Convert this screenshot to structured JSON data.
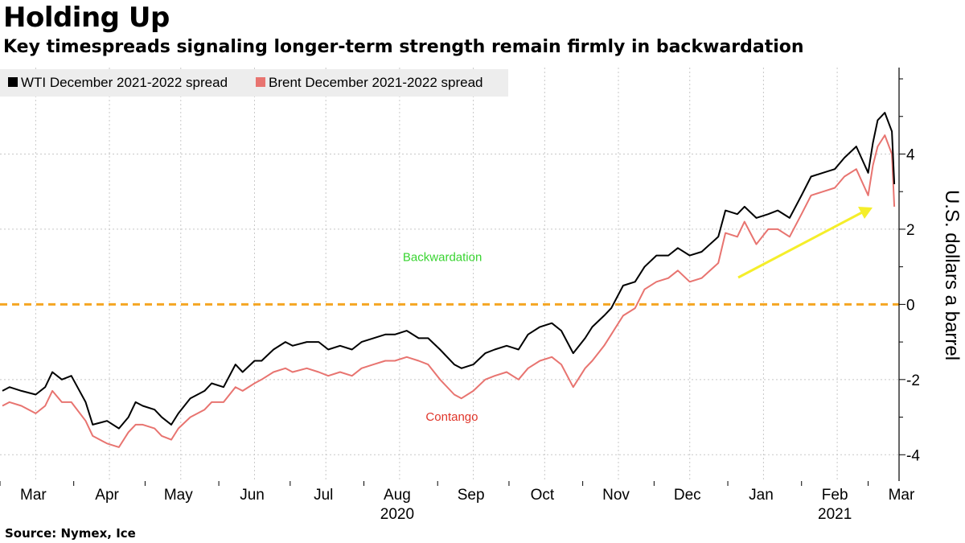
{
  "title": "Holding Up",
  "subtitle": "Key timespreads signaling longer-term strength remain firmly in backwardation",
  "source": "Source: Nymex, Ice",
  "colors": {
    "wti": "#000000",
    "brent": "#e87470",
    "zero_line": "#f5a623",
    "backwardation": "#38d430",
    "contango": "#e0352a",
    "arrow": "#f5ee2a",
    "grid": "#c8c8c8"
  },
  "chart_data": {
    "type": "line",
    "title": "Holding Up",
    "subtitle": "Key timespreads signaling longer-term strength remain firmly in backwardation",
    "ylabel": "U.S. dollars a barrel",
    "xlabel": "",
    "ylim": [
      -4.7,
      6.3
    ],
    "yticks": [
      -4,
      -2,
      0,
      2,
      4
    ],
    "ytick_labels": [
      "-4",
      "-2",
      "0",
      "2",
      "4"
    ],
    "x_range": [
      "2020-03-01",
      "2021-03-14"
    ],
    "month_ticks": [
      {
        "label": "Mar",
        "date": "2020-03-01"
      },
      {
        "label": "Apr",
        "date": "2020-04-01"
      },
      {
        "label": "May",
        "date": "2020-05-01"
      },
      {
        "label": "Jun",
        "date": "2020-06-01"
      },
      {
        "label": "Jul",
        "date": "2020-07-01"
      },
      {
        "label": "Aug",
        "date": "2020-08-01"
      },
      {
        "label": "Sep",
        "date": "2020-09-01"
      },
      {
        "label": "Oct",
        "date": "2020-10-01"
      },
      {
        "label": "Nov",
        "date": "2020-11-01"
      },
      {
        "label": "Dec",
        "date": "2020-12-01"
      },
      {
        "label": "Jan",
        "date": "2021-01-01"
      },
      {
        "label": "Feb",
        "date": "2021-02-01"
      },
      {
        "label": "Mar",
        "date": "2021-03-01"
      }
    ],
    "year_labels": [
      {
        "label": "2020",
        "date": "2020-08-01"
      },
      {
        "label": "2021",
        "date": "2021-02-01"
      }
    ],
    "grid": true,
    "legend_position": "top-left",
    "series": [
      {
        "name": "WTI December 2021-2022 spread",
        "color": "#000000",
        "points": [
          [
            "2020-03-02",
            -2.3
          ],
          [
            "2020-03-05",
            -2.2
          ],
          [
            "2020-03-10",
            -2.3
          ],
          [
            "2020-03-16",
            -2.4
          ],
          [
            "2020-03-20",
            -2.2
          ],
          [
            "2020-03-23",
            -1.8
          ],
          [
            "2020-03-27",
            -2.0
          ],
          [
            "2020-03-31",
            -1.9
          ],
          [
            "2020-04-06",
            -2.6
          ],
          [
            "2020-04-09",
            -3.2
          ],
          [
            "2020-04-15",
            -3.1
          ],
          [
            "2020-04-20",
            -3.3
          ],
          [
            "2020-04-24",
            -3.0
          ],
          [
            "2020-04-27",
            -2.6
          ],
          [
            "2020-04-30",
            -2.7
          ],
          [
            "2020-05-05",
            -2.8
          ],
          [
            "2020-05-08",
            -3.0
          ],
          [
            "2020-05-12",
            -3.2
          ],
          [
            "2020-05-15",
            -2.9
          ],
          [
            "2020-05-20",
            -2.5
          ],
          [
            "2020-05-26",
            -2.3
          ],
          [
            "2020-05-29",
            -2.1
          ],
          [
            "2020-06-03",
            -2.2
          ],
          [
            "2020-06-08",
            -1.6
          ],
          [
            "2020-06-11",
            -1.8
          ],
          [
            "2020-06-16",
            -1.5
          ],
          [
            "2020-06-19",
            -1.5
          ],
          [
            "2020-06-24",
            -1.2
          ],
          [
            "2020-06-29",
            -1.0
          ],
          [
            "2020-07-02",
            -1.1
          ],
          [
            "2020-07-08",
            -1.0
          ],
          [
            "2020-07-13",
            -1.0
          ],
          [
            "2020-07-17",
            -1.2
          ],
          [
            "2020-07-22",
            -1.1
          ],
          [
            "2020-07-27",
            -1.2
          ],
          [
            "2020-07-31",
            -1.0
          ],
          [
            "2020-08-05",
            -0.9
          ],
          [
            "2020-08-10",
            -0.8
          ],
          [
            "2020-08-14",
            -0.8
          ],
          [
            "2020-08-19",
            -0.7
          ],
          [
            "2020-08-24",
            -0.9
          ],
          [
            "2020-08-28",
            -0.9
          ],
          [
            "2020-09-02",
            -1.2
          ],
          [
            "2020-09-08",
            -1.6
          ],
          [
            "2020-09-11",
            -1.7
          ],
          [
            "2020-09-16",
            -1.6
          ],
          [
            "2020-09-21",
            -1.3
          ],
          [
            "2020-09-25",
            -1.2
          ],
          [
            "2020-09-30",
            -1.1
          ],
          [
            "2020-10-05",
            -1.2
          ],
          [
            "2020-10-09",
            -0.8
          ],
          [
            "2020-10-14",
            -0.6
          ],
          [
            "2020-10-19",
            -0.5
          ],
          [
            "2020-10-23",
            -0.7
          ],
          [
            "2020-10-28",
            -1.3
          ],
          [
            "2020-11-02",
            -0.9
          ],
          [
            "2020-11-05",
            -0.6
          ],
          [
            "2020-11-10",
            -0.3
          ],
          [
            "2020-11-13",
            -0.1
          ],
          [
            "2020-11-18",
            0.5
          ],
          [
            "2020-11-23",
            0.6
          ],
          [
            "2020-11-27",
            1.0
          ],
          [
            "2020-12-02",
            1.3
          ],
          [
            "2020-12-07",
            1.3
          ],
          [
            "2020-12-11",
            1.5
          ],
          [
            "2020-12-16",
            1.3
          ],
          [
            "2020-12-21",
            1.4
          ],
          [
            "2020-12-28",
            1.8
          ],
          [
            "2020-12-31",
            2.5
          ],
          [
            "2021-01-05",
            2.4
          ],
          [
            "2021-01-08",
            2.6
          ],
          [
            "2021-01-13",
            2.3
          ],
          [
            "2021-01-18",
            2.4
          ],
          [
            "2021-01-22",
            2.5
          ],
          [
            "2021-01-27",
            2.3
          ],
          [
            "2021-02-01",
            2.9
          ],
          [
            "2021-02-05",
            3.4
          ],
          [
            "2021-02-10",
            3.5
          ],
          [
            "2021-02-15",
            3.6
          ],
          [
            "2021-02-19",
            3.9
          ],
          [
            "2021-02-24",
            4.2
          ],
          [
            "2021-03-01",
            3.5
          ],
          [
            "2021-03-03",
            4.3
          ],
          [
            "2021-03-05",
            4.9
          ],
          [
            "2021-03-08",
            5.1
          ],
          [
            "2021-03-11",
            4.6
          ],
          [
            "2021-03-12",
            3.2
          ]
        ]
      },
      {
        "name": "Brent December 2021-2022 spread",
        "color": "#e87470",
        "points": [
          [
            "2020-03-02",
            -2.7
          ],
          [
            "2020-03-05",
            -2.6
          ],
          [
            "2020-03-10",
            -2.7
          ],
          [
            "2020-03-16",
            -2.9
          ],
          [
            "2020-03-20",
            -2.7
          ],
          [
            "2020-03-23",
            -2.3
          ],
          [
            "2020-03-27",
            -2.6
          ],
          [
            "2020-03-31",
            -2.6
          ],
          [
            "2020-04-06",
            -3.1
          ],
          [
            "2020-04-09",
            -3.5
          ],
          [
            "2020-04-15",
            -3.7
          ],
          [
            "2020-04-20",
            -3.8
          ],
          [
            "2020-04-24",
            -3.4
          ],
          [
            "2020-04-27",
            -3.2
          ],
          [
            "2020-04-30",
            -3.2
          ],
          [
            "2020-05-05",
            -3.3
          ],
          [
            "2020-05-08",
            -3.5
          ],
          [
            "2020-05-12",
            -3.6
          ],
          [
            "2020-05-15",
            -3.3
          ],
          [
            "2020-05-20",
            -3.0
          ],
          [
            "2020-05-26",
            -2.8
          ],
          [
            "2020-05-29",
            -2.6
          ],
          [
            "2020-06-03",
            -2.6
          ],
          [
            "2020-06-08",
            -2.2
          ],
          [
            "2020-06-11",
            -2.3
          ],
          [
            "2020-06-16",
            -2.1
          ],
          [
            "2020-06-19",
            -2.0
          ],
          [
            "2020-06-24",
            -1.8
          ],
          [
            "2020-06-29",
            -1.7
          ],
          [
            "2020-07-02",
            -1.8
          ],
          [
            "2020-07-08",
            -1.7
          ],
          [
            "2020-07-13",
            -1.8
          ],
          [
            "2020-07-17",
            -1.9
          ],
          [
            "2020-07-22",
            -1.8
          ],
          [
            "2020-07-27",
            -1.9
          ],
          [
            "2020-07-31",
            -1.7
          ],
          [
            "2020-08-05",
            -1.6
          ],
          [
            "2020-08-10",
            -1.5
          ],
          [
            "2020-08-14",
            -1.5
          ],
          [
            "2020-08-19",
            -1.4
          ],
          [
            "2020-08-24",
            -1.5
          ],
          [
            "2020-08-28",
            -1.6
          ],
          [
            "2020-09-02",
            -2.0
          ],
          [
            "2020-09-08",
            -2.4
          ],
          [
            "2020-09-11",
            -2.5
          ],
          [
            "2020-09-16",
            -2.3
          ],
          [
            "2020-09-21",
            -2.0
          ],
          [
            "2020-09-25",
            -1.9
          ],
          [
            "2020-09-30",
            -1.8
          ],
          [
            "2020-10-05",
            -2.0
          ],
          [
            "2020-10-09",
            -1.7
          ],
          [
            "2020-10-14",
            -1.5
          ],
          [
            "2020-10-19",
            -1.4
          ],
          [
            "2020-10-23",
            -1.6
          ],
          [
            "2020-10-28",
            -2.2
          ],
          [
            "2020-11-02",
            -1.7
          ],
          [
            "2020-11-05",
            -1.5
          ],
          [
            "2020-11-10",
            -1.1
          ],
          [
            "2020-11-13",
            -0.8
          ],
          [
            "2020-11-18",
            -0.3
          ],
          [
            "2020-11-23",
            -0.1
          ],
          [
            "2020-11-27",
            0.4
          ],
          [
            "2020-12-02",
            0.6
          ],
          [
            "2020-12-07",
            0.7
          ],
          [
            "2020-12-11",
            0.9
          ],
          [
            "2020-12-16",
            0.6
          ],
          [
            "2020-12-21",
            0.7
          ],
          [
            "2020-12-28",
            1.1
          ],
          [
            "2020-12-31",
            1.9
          ],
          [
            "2021-01-05",
            1.8
          ],
          [
            "2021-01-08",
            2.2
          ],
          [
            "2021-01-13",
            1.6
          ],
          [
            "2021-01-18",
            2.0
          ],
          [
            "2021-01-22",
            2.0
          ],
          [
            "2021-01-27",
            1.8
          ],
          [
            "2021-02-01",
            2.4
          ],
          [
            "2021-02-05",
            2.9
          ],
          [
            "2021-02-10",
            3.0
          ],
          [
            "2021-02-15",
            3.1
          ],
          [
            "2021-02-19",
            3.4
          ],
          [
            "2021-02-24",
            3.6
          ],
          [
            "2021-03-01",
            2.9
          ],
          [
            "2021-03-03",
            3.7
          ],
          [
            "2021-03-05",
            4.2
          ],
          [
            "2021-03-08",
            4.5
          ],
          [
            "2021-03-11",
            4.0
          ],
          [
            "2021-03-12",
            2.6
          ]
        ]
      }
    ],
    "reference_line": {
      "y": 0,
      "style": "dashed"
    },
    "annotations": [
      {
        "text": "Backwardation",
        "date": "2020-09-03",
        "y": 1.15
      },
      {
        "text": "Contango",
        "date": "2020-09-07",
        "y": -3.1
      }
    ]
  }
}
